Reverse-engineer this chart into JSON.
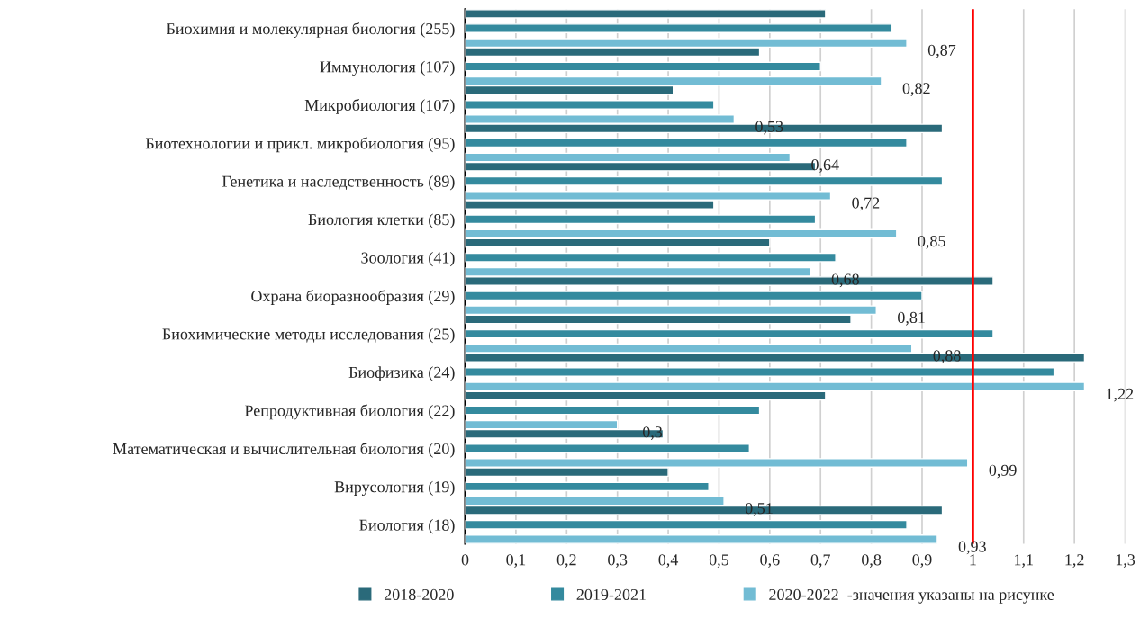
{
  "chart_data": {
    "type": "bar",
    "orientation": "horizontal",
    "categories": [
      "Биохимия и молекулярная биология (255)",
      "Иммунология (107)",
      "Микробиология (107)",
      "Биотехнологии и прикл. микробиология (95)",
      "Генетика и наследственность (89)",
      "Биология клетки (85)",
      "Зоология (41)",
      "Охрана биоразнообразия (29)",
      "Биохимические методы исследования (25)",
      "Биофизика (24)",
      "Репродуктивная биология (22)",
      "Математическая и вычислительная биология (20)",
      "Вирусология (19)",
      "Биология (18)"
    ],
    "series": [
      {
        "name": "2018-2020",
        "color": "#2a6a7a",
        "values": [
          0.71,
          0.58,
          0.41,
          0.94,
          0.69,
          0.49,
          0.6,
          1.04,
          0.76,
          1.22,
          0.71,
          0.39,
          0.4,
          0.94
        ]
      },
      {
        "name": "2019-2021",
        "color": "#348a9e",
        "values": [
          0.84,
          0.7,
          0.49,
          0.87,
          0.94,
          0.69,
          0.73,
          0.9,
          1.04,
          1.16,
          0.58,
          0.56,
          0.48,
          0.87
        ]
      },
      {
        "name": "2020-2022  -значения указаны на рисунке",
        "color": "#72bcd4",
        "values": [
          0.87,
          0.82,
          0.53,
          0.64,
          0.72,
          0.85,
          0.68,
          0.81,
          0.88,
          1.22,
          0.3,
          0.99,
          0.51,
          0.93
        ],
        "value_labels": [
          "0,87",
          "0,82",
          "0,53",
          "0,64",
          "0,72",
          "0,85",
          "0,68",
          "0,81",
          "0,88",
          "1,22",
          "0,3",
          "0,99",
          "0,51",
          "0,93"
        ]
      }
    ],
    "xlim": [
      0,
      1.3
    ],
    "xticks": [
      0,
      {
        "value": 0.1,
        "label": "0,1"
      },
      {
        "value": 0.2,
        "label": "0,2"
      },
      {
        "value": 0.3,
        "label": "0,3"
      },
      {
        "value": 0.4,
        "label": "0,4"
      },
      {
        "value": 0.5,
        "label": "0,5"
      },
      {
        "value": 0.6,
        "label": "0,6"
      },
      {
        "value": 0.7,
        "label": "0,7"
      },
      {
        "value": 0.8,
        "label": "0,8"
      },
      {
        "value": 0.9,
        "label": "0,9"
      },
      1,
      {
        "value": 1.1,
        "label": "1,1"
      },
      {
        "value": 1.2,
        "label": "1,2"
      },
      {
        "value": 1.3,
        "label": "1,3"
      }
    ],
    "ref_lines": [
      {
        "axis": "x",
        "value": 1,
        "color": "#ff0000"
      }
    ],
    "grid": "x",
    "legend": "bottom"
  }
}
